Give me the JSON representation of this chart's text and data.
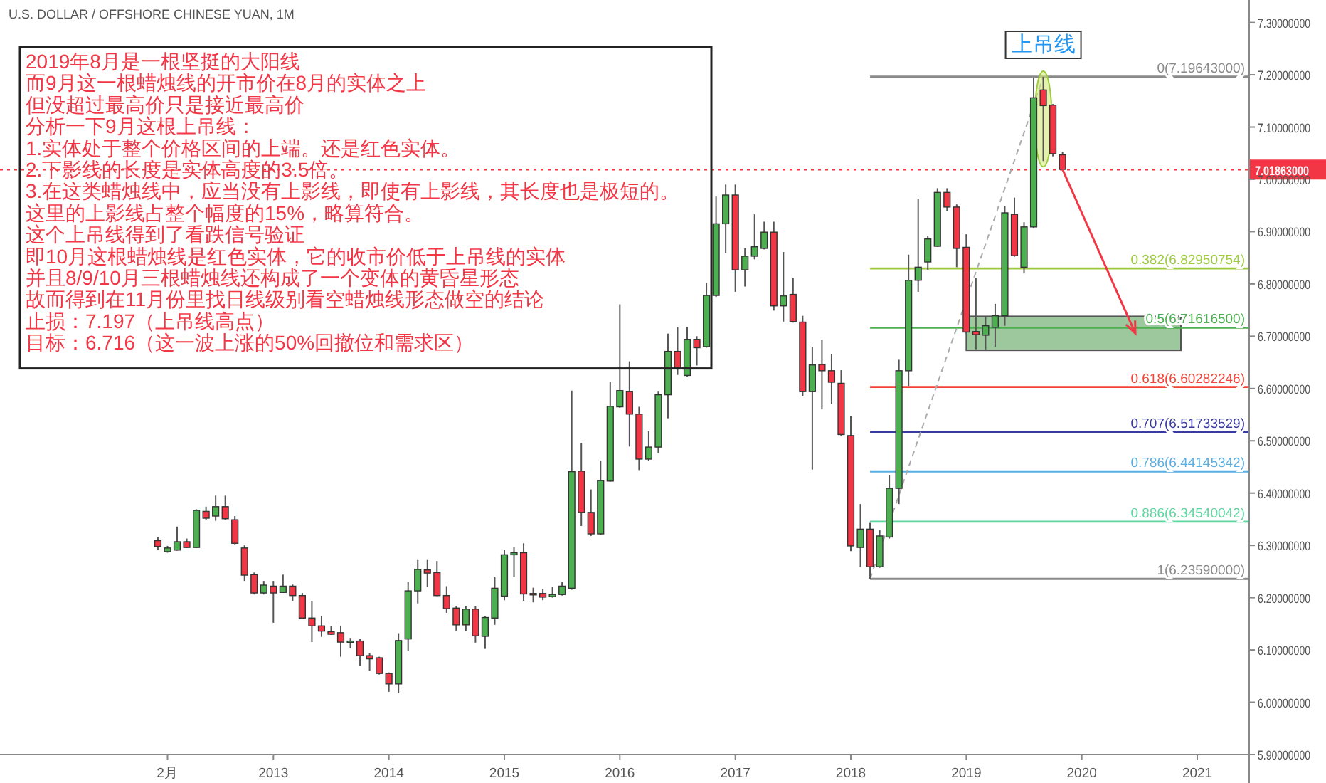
{
  "chart_data": {
    "type": "candlestick",
    "title": "U.S. DOLLAR / OFFSHORE CHINESE YUAN, 1M",
    "x": [
      "2012-01",
      "2012-02",
      "2012-03",
      "2012-04",
      "2012-05",
      "2012-06",
      "2012-07",
      "2012-08",
      "2012-09",
      "2012-10",
      "2012-11",
      "2012-12",
      "2013-01",
      "2013-02",
      "2013-03",
      "2013-04",
      "2013-05",
      "2013-06",
      "2013-07",
      "2013-08",
      "2013-09",
      "2013-10",
      "2013-11",
      "2013-12",
      "2014-01",
      "2014-02",
      "2014-03",
      "2014-04",
      "2014-05",
      "2014-06",
      "2014-07",
      "2014-08",
      "2014-09",
      "2014-10",
      "2014-11",
      "2014-12",
      "2015-01",
      "2015-02",
      "2015-03",
      "2015-04",
      "2015-05",
      "2015-06",
      "2015-07",
      "2015-08",
      "2015-09",
      "2015-10",
      "2015-11",
      "2015-12",
      "2016-01",
      "2016-02",
      "2016-03",
      "2016-04",
      "2016-05",
      "2016-06",
      "2016-07",
      "2016-08",
      "2016-09",
      "2016-10",
      "2016-11",
      "2016-12",
      "2017-01",
      "2017-02",
      "2017-03",
      "2017-04",
      "2017-05",
      "2017-06",
      "2017-07",
      "2017-08",
      "2017-09",
      "2017-10",
      "2017-11",
      "2017-12",
      "2018-01",
      "2018-02",
      "2018-03",
      "2018-04",
      "2018-05",
      "2018-06",
      "2018-07",
      "2018-08",
      "2018-09",
      "2018-10",
      "2018-11",
      "2018-12",
      "2019-01",
      "2019-02",
      "2019-03",
      "2019-04",
      "2019-05",
      "2019-06",
      "2019-07",
      "2019-08",
      "2019-09",
      "2019-10",
      "2019-11"
    ],
    "ohlc": [
      [
        6.309,
        6.316,
        6.291,
        6.298
      ],
      [
        6.288,
        6.299,
        6.286,
        6.295
      ],
      [
        6.291,
        6.336,
        6.29,
        6.307
      ],
      [
        6.307,
        6.313,
        6.295,
        6.296
      ],
      [
        6.296,
        6.369,
        6.295,
        6.367
      ],
      [
        6.365,
        6.374,
        6.349,
        6.352
      ],
      [
        6.356,
        6.395,
        6.347,
        6.374
      ],
      [
        6.374,
        6.395,
        6.349,
        6.351
      ],
      [
        6.349,
        6.356,
        6.302,
        6.304
      ],
      [
        6.295,
        6.3,
        6.232,
        6.243
      ],
      [
        6.244,
        6.248,
        6.206,
        6.209
      ],
      [
        6.209,
        6.232,
        6.206,
        6.224
      ],
      [
        6.222,
        6.232,
        6.152,
        6.209
      ],
      [
        6.21,
        6.244,
        6.209,
        6.222
      ],
      [
        6.222,
        6.225,
        6.194,
        6.204
      ],
      [
        6.204,
        6.209,
        6.16,
        6.161
      ],
      [
        6.161,
        6.194,
        6.115,
        6.146
      ],
      [
        6.146,
        6.165,
        6.125,
        6.136
      ],
      [
        6.135,
        6.145,
        6.129,
        6.13
      ],
      [
        6.133,
        6.146,
        6.087,
        6.115
      ],
      [
        6.116,
        6.123,
        6.103,
        6.117
      ],
      [
        6.117,
        6.121,
        6.069,
        6.089
      ],
      [
        6.089,
        6.094,
        6.06,
        6.083
      ],
      [
        6.085,
        6.087,
        6.053,
        6.055
      ],
      [
        6.055,
        6.057,
        6.02,
        6.035
      ],
      [
        6.035,
        6.132,
        6.017,
        6.118
      ],
      [
        6.121,
        6.23,
        6.098,
        6.213
      ],
      [
        6.213,
        6.272,
        6.189,
        6.254
      ],
      [
        6.253,
        6.272,
        6.221,
        6.247
      ],
      [
        6.248,
        6.27,
        6.203,
        6.204
      ],
      [
        6.204,
        6.222,
        6.171,
        6.179
      ],
      [
        6.18,
        6.184,
        6.137,
        6.148
      ],
      [
        6.148,
        6.184,
        6.136,
        6.178
      ],
      [
        6.178,
        6.184,
        6.114,
        6.127
      ],
      [
        6.126,
        6.165,
        6.102,
        6.162
      ],
      [
        6.161,
        6.239,
        6.148,
        6.218
      ],
      [
        6.203,
        6.292,
        6.195,
        6.282
      ],
      [
        6.282,
        6.296,
        6.239,
        6.286
      ],
      [
        6.286,
        6.304,
        6.194,
        6.207
      ],
      [
        6.208,
        6.219,
        6.191,
        6.206
      ],
      [
        6.208,
        6.216,
        6.195,
        6.201
      ],
      [
        6.202,
        6.221,
        6.2,
        6.206
      ],
      [
        6.206,
        6.23,
        6.204,
        6.222
      ],
      [
        6.218,
        6.596,
        6.215,
        6.441
      ],
      [
        6.442,
        6.496,
        6.337,
        6.363
      ],
      [
        6.363,
        6.407,
        6.318,
        6.322
      ],
      [
        6.322,
        6.462,
        6.32,
        6.424
      ],
      [
        6.423,
        6.612,
        6.422,
        6.566
      ],
      [
        6.565,
        6.761,
        6.563,
        6.596
      ],
      [
        6.594,
        6.652,
        6.489,
        6.551
      ],
      [
        6.551,
        6.565,
        6.444,
        6.465
      ],
      [
        6.465,
        6.518,
        6.462,
        6.488
      ],
      [
        6.488,
        6.594,
        6.477,
        6.588
      ],
      [
        6.588,
        6.705,
        6.543,
        6.671
      ],
      [
        6.671,
        6.718,
        6.626,
        6.64
      ],
      [
        6.625,
        6.717,
        6.623,
        6.694
      ],
      [
        6.694,
        6.7,
        6.644,
        6.678
      ],
      [
        6.68,
        6.802,
        6.678,
        6.778
      ],
      [
        6.778,
        6.967,
        6.775,
        6.915
      ],
      [
        6.915,
        6.99,
        6.859,
        6.97
      ],
      [
        6.97,
        6.99,
        6.785,
        6.827
      ],
      [
        6.827,
        6.868,
        6.795,
        6.853
      ],
      [
        6.853,
        6.933,
        6.847,
        6.871
      ],
      [
        6.868,
        6.919,
        6.866,
        6.899
      ],
      [
        6.899,
        6.919,
        6.749,
        6.758
      ],
      [
        6.758,
        6.861,
        6.728,
        6.777
      ],
      [
        6.78,
        6.812,
        6.726,
        6.728
      ],
      [
        6.727,
        6.739,
        6.585,
        6.594
      ],
      [
        6.594,
        6.68,
        6.445,
        6.645
      ],
      [
        6.646,
        6.693,
        6.56,
        6.634
      ],
      [
        6.634,
        6.666,
        6.571,
        6.612
      ],
      [
        6.61,
        6.635,
        6.51,
        6.512
      ],
      [
        6.51,
        6.547,
        6.289,
        6.299
      ],
      [
        6.296,
        6.379,
        6.259,
        6.331
      ],
      [
        6.331,
        6.343,
        6.236,
        6.259
      ],
      [
        6.259,
        6.329,
        6.257,
        6.318
      ],
      [
        6.316,
        6.435,
        6.313,
        6.409
      ],
      [
        6.409,
        6.655,
        6.379,
        6.634
      ],
      [
        6.634,
        6.856,
        6.605,
        6.807
      ],
      [
        6.807,
        6.963,
        6.785,
        6.832
      ],
      [
        6.842,
        6.892,
        6.827,
        6.886
      ],
      [
        6.872,
        6.983,
        6.871,
        6.975
      ],
      [
        6.975,
        6.983,
        6.94,
        6.947
      ],
      [
        6.947,
        6.952,
        6.832,
        6.868
      ],
      [
        6.87,
        6.895,
        6.705,
        6.708
      ],
      [
        6.709,
        6.811,
        6.675,
        6.703
      ],
      [
        6.702,
        6.737,
        6.673,
        6.72
      ],
      [
        6.717,
        6.762,
        6.68,
        6.739
      ],
      [
        6.739,
        6.949,
        6.72,
        6.936
      ],
      [
        6.933,
        6.965,
        6.852,
        6.854
      ],
      [
        6.832,
        6.918,
        6.82,
        6.909
      ],
      [
        6.909,
        7.194,
        6.907,
        7.156
      ],
      [
        7.171,
        7.196,
        7.035,
        7.141
      ],
      [
        7.142,
        7.144,
        7.044,
        7.049
      ],
      [
        7.047,
        7.053,
        7.019,
        7.019
      ]
    ],
    "colors": [
      "#f23645",
      "#4caf50",
      "#4caf50",
      "#f23645",
      "#4caf50",
      "#f23645",
      "#4caf50",
      "#f23645",
      "#f23645",
      "#f23645",
      "#f23645",
      "#4caf50",
      "#f23645",
      "#4caf50",
      "#f23645",
      "#f23645",
      "#f23645",
      "#f23645",
      "#f23645",
      "#f23645",
      "#4caf50",
      "#f23645",
      "#f23645",
      "#f23645",
      "#f23645",
      "#4caf50",
      "#4caf50",
      "#4caf50",
      "#f23645",
      "#f23645",
      "#f23645",
      "#f23645",
      "#4caf50",
      "#f23645",
      "#4caf50",
      "#4caf50",
      "#4caf50",
      "#4caf50",
      "#f23645",
      "#f23645",
      "#f23645",
      "#4caf50",
      "#4caf50",
      "#4caf50",
      "#f23645",
      "#f23645",
      "#4caf50",
      "#4caf50",
      "#4caf50",
      "#f23645",
      "#f23645",
      "#4caf50",
      "#4caf50",
      "#4caf50",
      "#f23645",
      "#4caf50",
      "#f23645",
      "#4caf50",
      "#4caf50",
      "#4caf50",
      "#f23645",
      "#4caf50",
      "#4caf50",
      "#4caf50",
      "#f23645",
      "#4caf50",
      "#f23645",
      "#f23645",
      "#4caf50",
      "#f23645",
      "#f23645",
      "#f23645",
      "#f23645",
      "#4caf50",
      "#f23645",
      "#4caf50",
      "#4caf50",
      "#4caf50",
      "#4caf50",
      "#4caf50",
      "#4caf50",
      "#4caf50",
      "#f23645",
      "#f23645",
      "#f23645",
      "#f23645",
      "#4caf50",
      "#4caf50",
      "#4caf50",
      "#f23645",
      "#4caf50",
      "#4caf50",
      "#f23645",
      "#f23645",
      "#f23645"
    ],
    "xlim": [
      "2010-08-19",
      "2021-06-13"
    ],
    "xticks": [
      {
        "value": "2012-02",
        "label": "2月"
      },
      {
        "value": "2013-01",
        "label": "2013"
      },
      {
        "value": "2014-01",
        "label": "2014"
      },
      {
        "value": "2015-01",
        "label": "2015"
      },
      {
        "value": "2016-01",
        "label": "2016"
      },
      {
        "value": "2017-01",
        "label": "2017"
      },
      {
        "value": "2018-01",
        "label": "2018"
      },
      {
        "value": "2019-01",
        "label": "2019"
      },
      {
        "value": "2020-01",
        "label": "2020"
      },
      {
        "value": "2021-01",
        "label": "2021"
      }
    ],
    "ylim": [
      5.9,
      7.343
    ],
    "yticks": [
      {
        "value": 5.9,
        "label": "5.90000000"
      },
      {
        "value": 6.0,
        "label": "6.00000000"
      },
      {
        "value": 6.1,
        "label": "6.10000000"
      },
      {
        "value": 6.2,
        "label": "6.20000000"
      },
      {
        "value": 6.3,
        "label": "6.30000000"
      },
      {
        "value": 6.4,
        "label": "6.40000000"
      },
      {
        "value": 6.5,
        "label": "6.50000000"
      },
      {
        "value": 6.6,
        "label": "6.60000000"
      },
      {
        "value": 6.7,
        "label": "6.70000000"
      },
      {
        "value": 6.8,
        "label": "6.80000000"
      },
      {
        "value": 6.9,
        "label": "6.90000000"
      },
      {
        "value": 7.0,
        "label": "7.00000000"
      },
      {
        "value": 7.1,
        "label": "7.10000000"
      },
      {
        "value": 7.2,
        "label": "7.20000000"
      },
      {
        "value": 7.3,
        "label": "7.30000000"
      }
    ],
    "ref_lines": [
      {
        "axis": "y",
        "value": 7.19643,
        "label": "0(7.19643000)",
        "color": "#8a8a8a",
        "line_style": "solid"
      },
      {
        "axis": "y",
        "value": 6.82950754,
        "label": "0.382(6.82950754)",
        "color": "#9ccc3d",
        "line_style": "solid"
      },
      {
        "axis": "y",
        "value": 6.716165,
        "label": "0.5(6.71616500)",
        "color": "#4caf50",
        "line_style": "solid"
      },
      {
        "axis": "y",
        "value": 6.60282246,
        "label": "0.618(6.60282246)",
        "color": "#f44336",
        "line_style": "solid"
      },
      {
        "axis": "y",
        "value": 6.51733529,
        "label": "0.707(6.51733529)",
        "color": "#3a3aa0",
        "line_style": "solid"
      },
      {
        "axis": "y",
        "value": 6.44145342,
        "label": "0.786(6.44145342)",
        "color": "#5aaee0",
        "line_style": "solid"
      },
      {
        "axis": "y",
        "value": 6.34540042,
        "label": "0.886(6.34540042)",
        "color": "#5fd6a0",
        "line_style": "solid"
      },
      {
        "axis": "y",
        "value": 6.2359,
        "label": "1(6.23590000)",
        "color": "#8a8a8a",
        "line_style": "solid"
      },
      {
        "axis": "y",
        "value": 7.01863,
        "label": "7.01863000",
        "color": "#f23645",
        "line_style": "dotted"
      }
    ],
    "bands": [
      {
        "axis": "y",
        "from": 6.673,
        "to": 6.738,
        "color": "#4c9a4c"
      }
    ],
    "annotations": [
      "2019年8月是一根坚挺的大阳线",
      "而9月这一根蜡烛线的开市价在8月的实体之上",
      "但没超过最高价只是接近最高价",
      "分析一下9月这根上吊线：",
      "1.实体处于整个价格区间的上端。还是红色实体。",
      "2.下影线的长度是实体高度的3.5倍。",
      "3.在这类蜡烛线中，应当没有上影线，即使有上影线，其长度也是极短的。",
      "这里的上影线占整个幅度的15%，略算符合。",
      "这个上吊线得到了看跌信号验证",
      "即10月这根蜡烛线是红色实体，它的收市价低于上吊线的实体",
      "并且8/9/10月三根蜡烛线还构成了一个变体的黄昏星形态",
      "故而得到在11月份里找日线级别看空蜡烛线形态做空的结论",
      "止损：7.197（上吊线高点）",
      "目标：6.716（这一波上涨的50%回撤位和需求区）",
      {
        "text": "上吊线",
        "x": "2019-09",
        "y": 7.196
      }
    ]
  }
}
